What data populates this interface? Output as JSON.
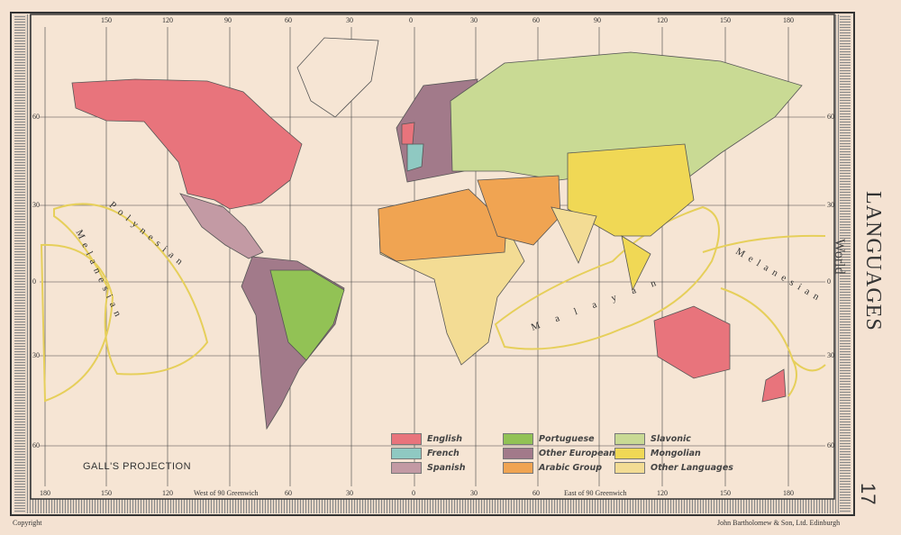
{
  "title": {
    "pre": "World",
    "main": "LANGUAGES"
  },
  "page_number": "17",
  "projection": "GALL'S PROJECTION",
  "footer": {
    "left": "Copyright",
    "right": "John Bartholomew & Son, Ltd. Edinburgh"
  },
  "top_longitudes": [
    "150",
    "120",
    "90",
    "60",
    "30",
    "0",
    "30",
    "60",
    "90",
    "120",
    "150",
    "180"
  ],
  "bottom_longitudes": [
    "180",
    "150",
    "120",
    "60",
    "30",
    "0",
    "30",
    "60",
    "120",
    "150",
    "180"
  ],
  "bottom_notes": {
    "west": "West of 90 Greenwich",
    "east": "East of 90 Greenwich"
  },
  "latitudes": [
    "60",
    "30",
    "0",
    "30",
    "60"
  ],
  "region_labels": {
    "polynesian": "Polynesian",
    "melanesian_west": "Melanesian",
    "malayan": "Malayan",
    "melanesian_east": "Melanesian"
  },
  "legend": [
    {
      "label": "English",
      "color": "#e8747c"
    },
    {
      "label": "French",
      "color": "#8fc9c2"
    },
    {
      "label": "Spanish",
      "color": "#c39aa4"
    },
    {
      "label": "Portuguese",
      "color": "#92c255"
    },
    {
      "label": "Other European",
      "color": "#a27a8a"
    },
    {
      "label": "Arabic Group",
      "color": "#f0a452"
    },
    {
      "label": "Slavonic",
      "color": "#c9da94"
    },
    {
      "label": "Mongolian",
      "color": "#f0d855"
    },
    {
      "label": "Other Languages",
      "color": "#f3dc94"
    }
  ]
}
